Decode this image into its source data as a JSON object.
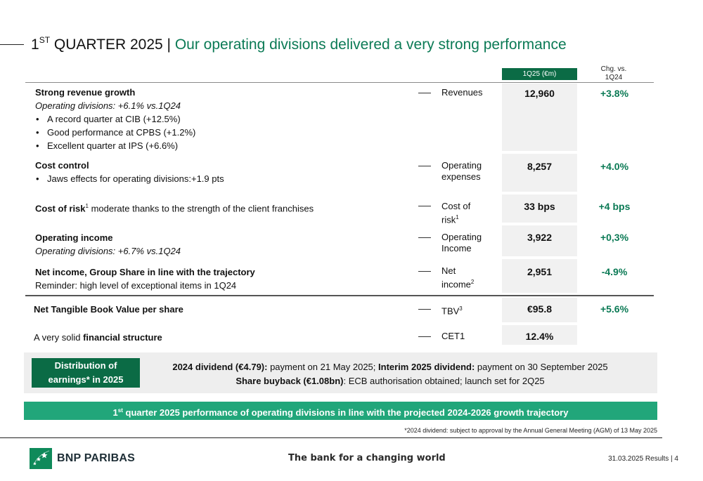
{
  "title": {
    "prefix": "1",
    "prefix_sup": "ST",
    "main": " QUARTER 2025 | ",
    "subtitle": "Our operating divisions delivered a very strong performance"
  },
  "columns": {
    "value_header": "1Q25 (€m)",
    "change_header_line1": "Chg. vs.",
    "change_header_line2": "1Q24"
  },
  "rows": {
    "revenues": {
      "heading": "Strong revenue growth",
      "note": "Operating divisions: +6.1% vs.1Q24",
      "bullets": [
        "A record quarter at CIB (+12.5%)",
        "Good performance at CPBS (+1.2%)",
        "Excellent quarter at IPS (+6.6%)"
      ],
      "metric": "Revenues",
      "value": "12,960",
      "change": "+3.8%"
    },
    "costs": {
      "heading": "Cost control",
      "bullets": [
        "Jaws effects for operating divisions:+1.9 pts"
      ],
      "metric_line1": "Operating",
      "metric_line2": "expenses",
      "value": "8,257",
      "change": "+4.0%"
    },
    "risk": {
      "heading": "Cost of risk",
      "heading_sup": "1",
      "rest": " moderate thanks to the strength of the client franchises",
      "metric_line1": "Cost of",
      "metric_line2": "risk",
      "metric_sup": "1",
      "value": "33 bps",
      "change": "+4 bps"
    },
    "opincome": {
      "heading": "Operating income",
      "note": "Operating divisions: +6.7% vs.1Q24",
      "metric_line1": "Operating",
      "metric_line2": "Income",
      "value": "3,922",
      "change": "+0,3%"
    },
    "netincome": {
      "heading": "Net income, Group Share in line with the trajectory",
      "note": "Reminder: high level of exceptional items in 1Q24",
      "metric_line1": "Net",
      "metric_line2": "income",
      "metric_sup": "2",
      "value": "2,951",
      "change": "-4.9%"
    },
    "tbv": {
      "heading": "Net Tangible Book Value per share",
      "metric": "TBV",
      "metric_sup": "3",
      "value": "€95.8",
      "change": "+5.6%"
    },
    "cet1": {
      "prefix": "A very solid ",
      "heading": "financial structure",
      "metric": "CET1",
      "value": "12.4%"
    }
  },
  "distribution": {
    "badge_line1": "Distribution of",
    "badge_line2": "earnings* in 2025",
    "line1_bold1": "2024 dividend (€4.79):",
    "line1_text1": " payment on 21 May 2025; ",
    "line1_bold2": "Interim 2025 dividend:",
    "line1_text2": " payment on 30 September 2025",
    "line2_bold": "Share buyback (€1.08bn)",
    "line2_text": ": ECB authorisation obtained; launch set for 2Q25"
  },
  "banner": {
    "prefix": "1",
    "prefix_sup": "st",
    "text": " quarter 2025 performance of operating divisions in line with the projected 2024-2026 growth trajectory"
  },
  "footnote": "*2024 dividend: subject to approval by the Annual General Meeting (AGM) of 13 May 2025",
  "footer": {
    "brand": "BNP PARIBAS",
    "tagline": "The bank for a changing world",
    "page_ref": "31.03.2025 Results | 4"
  },
  "colors": {
    "accent_dark": "#0b6b45",
    "accent_light": "#21a67a",
    "positive_text": "#0b7a55"
  },
  "icons": [
    "bnp-paribas-stars-logo-icon"
  ]
}
